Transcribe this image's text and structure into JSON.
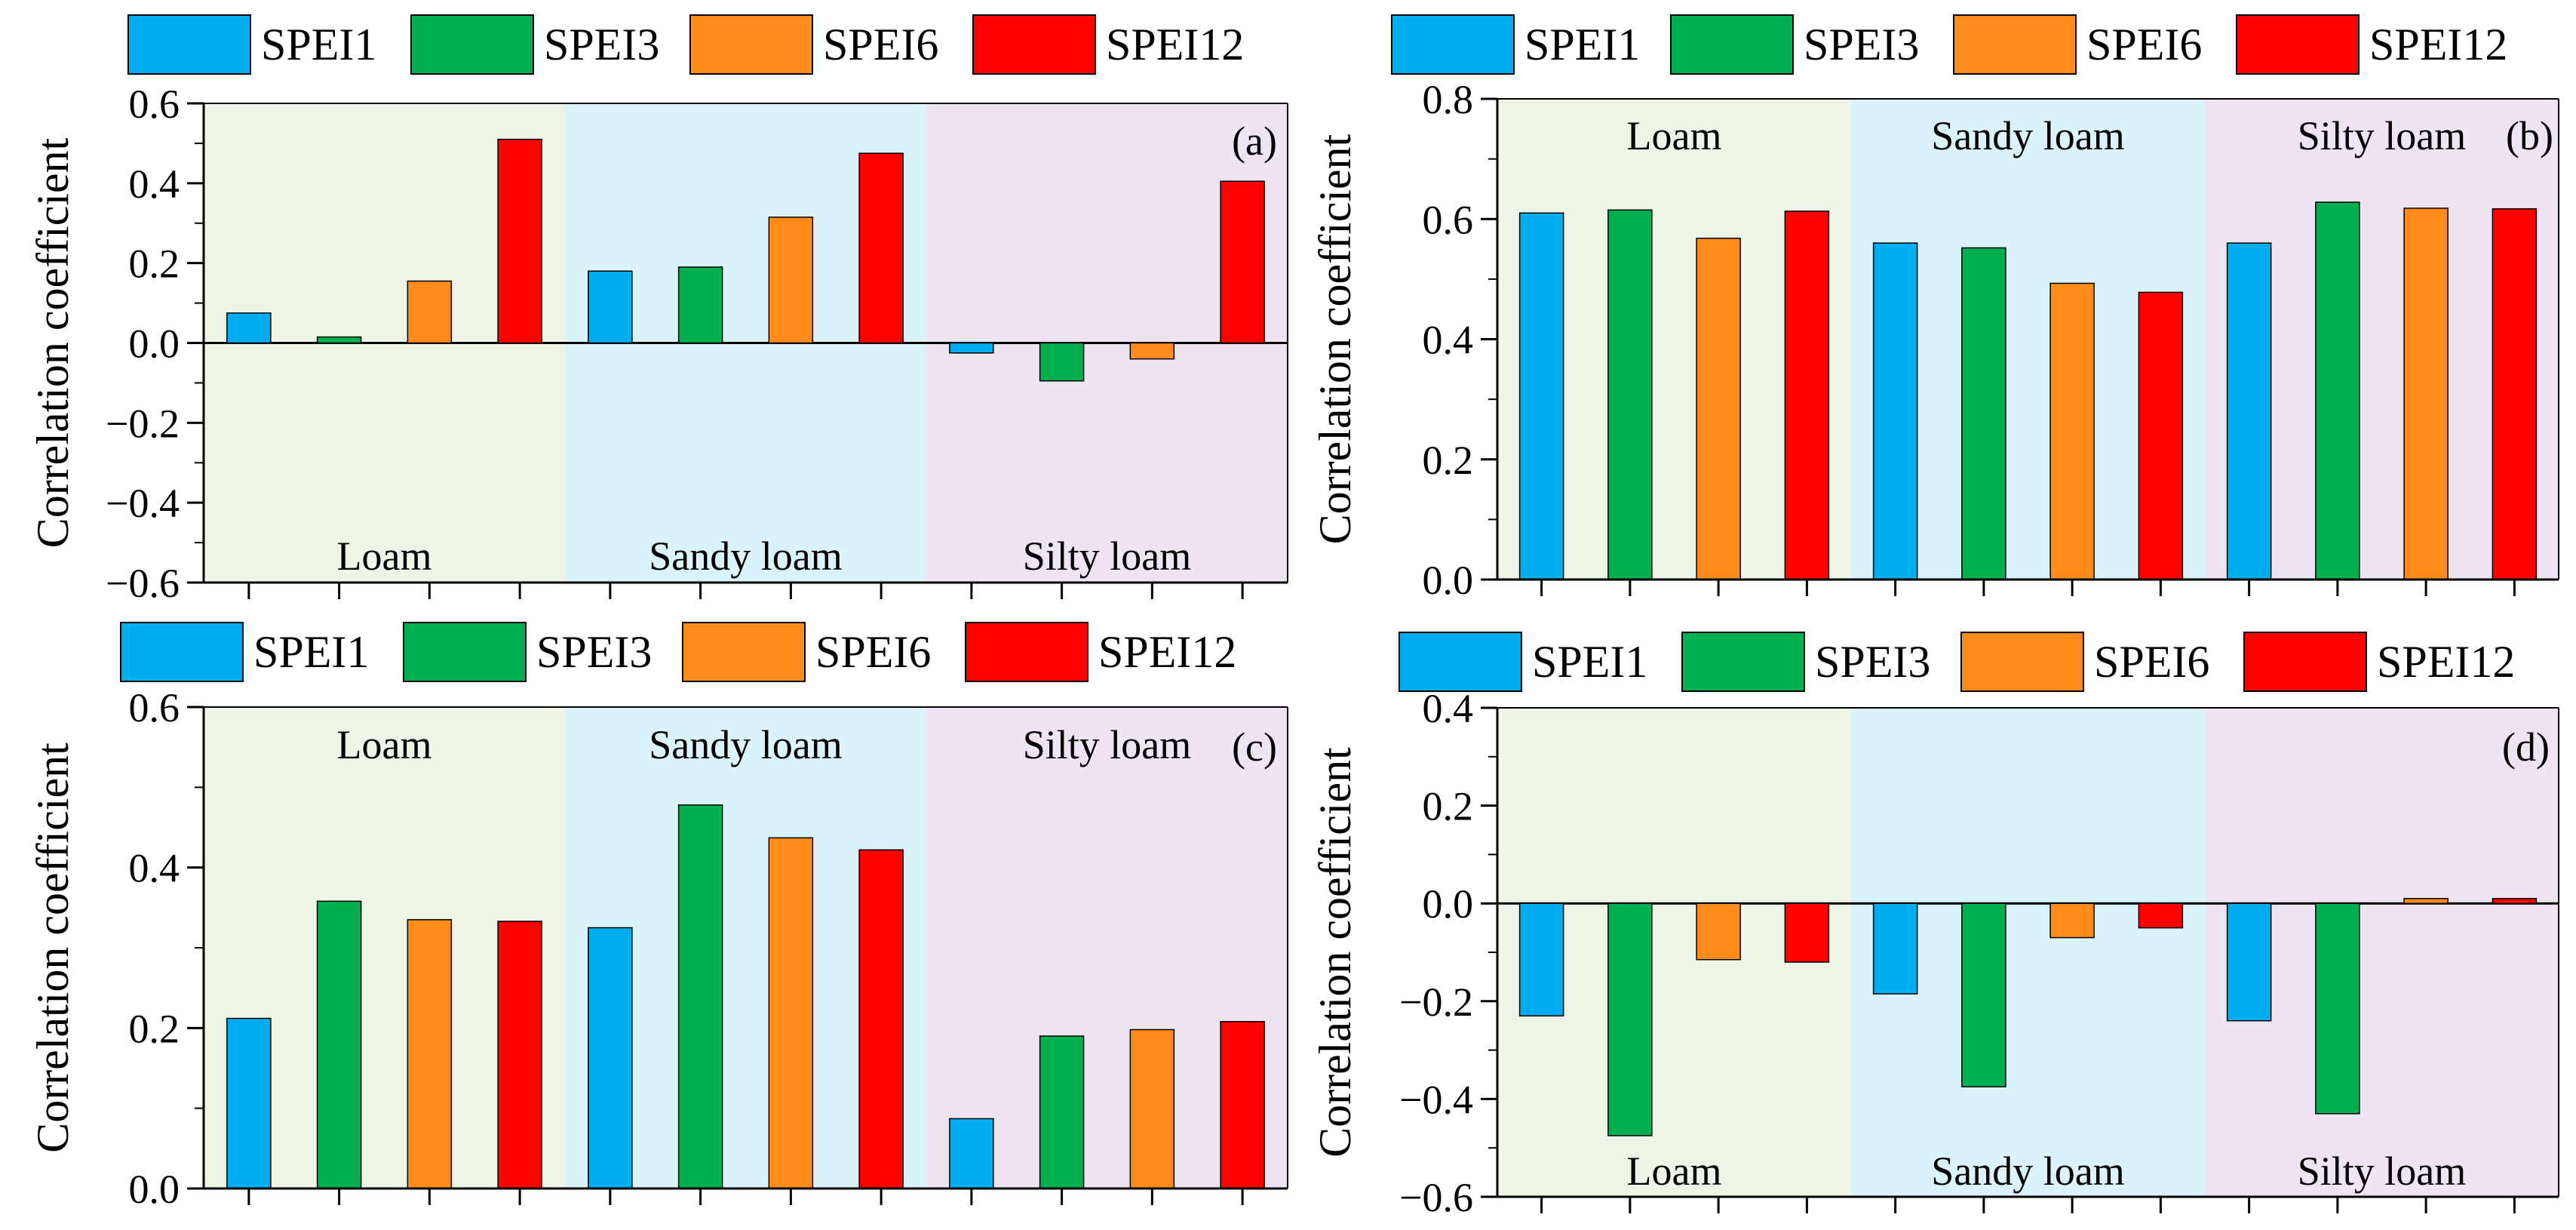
{
  "colors": {
    "SPEI1": "#00AEEF",
    "SPEI3": "#00B050",
    "SPEI6": "#FF8C1A",
    "SPEI12": "#FF0000",
    "bg_loam": "#EEF5E6",
    "bg_sandy": "#DBF3FB",
    "bg_silty": "#EFE5F2"
  },
  "chart_data": [
    {
      "panel": "a",
      "type": "bar",
      "panel_label": "(a)",
      "ylabel": "Correlation coefficient",
      "ylim": [
        -0.6,
        0.6
      ],
      "yticks": [
        -0.6,
        -0.4,
        -0.2,
        0.0,
        0.2,
        0.4,
        0.6
      ],
      "yticklabels": [
        "−0.6",
        "−0.4",
        "−0.2",
        "0.0",
        "0.2",
        "0.4",
        "0.6"
      ],
      "legend": [
        "SPEI1",
        "SPEI3",
        "SPEI6",
        "SPEI12"
      ],
      "group_labels": [
        "Loam",
        "Sandy loam",
        "Silty loam"
      ],
      "group_label_position": "bottom",
      "categories": [
        "Loam",
        "Sandy loam",
        "Silty loam"
      ],
      "series": [
        {
          "name": "SPEI1",
          "values": [
            0.075,
            0.18,
            -0.025
          ]
        },
        {
          "name": "SPEI3",
          "values": [
            0.015,
            0.19,
            -0.095
          ]
        },
        {
          "name": "SPEI6",
          "values": [
            0.155,
            0.315,
            -0.04
          ]
        },
        {
          "name": "SPEI12",
          "values": [
            0.51,
            0.475,
            0.405
          ]
        }
      ]
    },
    {
      "panel": "b",
      "type": "bar",
      "panel_label": "(b)",
      "ylabel": "Correlation coefficient",
      "ylim": [
        0.0,
        0.8
      ],
      "yticks": [
        0.0,
        0.2,
        0.4,
        0.6,
        0.8
      ],
      "yticklabels": [
        "0.0",
        "0.2",
        "0.4",
        "0.6",
        "0.8"
      ],
      "legend": [
        "SPEI1",
        "SPEI3",
        "SPEI6",
        "SPEI12"
      ],
      "group_labels": [
        "Loam",
        "Sandy loam",
        "Silty loam"
      ],
      "group_label_position": "top",
      "categories": [
        "Loam",
        "Sandy loam",
        "Silty loam"
      ],
      "series": [
        {
          "name": "SPEI1",
          "values": [
            0.61,
            0.56,
            0.56
          ]
        },
        {
          "name": "SPEI3",
          "values": [
            0.615,
            0.552,
            0.628
          ]
        },
        {
          "name": "SPEI6",
          "values": [
            0.568,
            0.493,
            0.618
          ]
        },
        {
          "name": "SPEI12",
          "values": [
            0.613,
            0.478,
            0.617
          ]
        }
      ]
    },
    {
      "panel": "c",
      "type": "bar",
      "panel_label": "(c)",
      "ylabel": "Correlation coefficient",
      "ylim": [
        0.0,
        0.6
      ],
      "yticks": [
        0.0,
        0.2,
        0.4,
        0.6
      ],
      "yticklabels": [
        "0.0",
        "0.2",
        "0.4",
        "0.6"
      ],
      "legend": [
        "SPEI1",
        "SPEI3",
        "SPEI6",
        "SPEI12"
      ],
      "group_labels": [
        "Loam",
        "Sandy loam",
        "Silty loam"
      ],
      "group_label_position": "top",
      "categories": [
        "Loam",
        "Sandy loam",
        "Silty loam"
      ],
      "series": [
        {
          "name": "SPEI1",
          "values": [
            0.212,
            0.325,
            0.087
          ]
        },
        {
          "name": "SPEI3",
          "values": [
            0.358,
            0.478,
            0.19
          ]
        },
        {
          "name": "SPEI6",
          "values": [
            0.335,
            0.437,
            0.198
          ]
        },
        {
          "name": "SPEI12",
          "values": [
            0.333,
            0.422,
            0.208
          ]
        }
      ]
    },
    {
      "panel": "d",
      "type": "bar",
      "panel_label": "(d)",
      "ylabel": "Correlation coefficient",
      "ylim": [
        -0.6,
        0.4
      ],
      "yticks": [
        -0.6,
        -0.4,
        -0.2,
        0.0,
        0.2,
        0.4
      ],
      "yticklabels": [
        "−0.6",
        "−0.4",
        "−0.2",
        "0.0",
        "0.2",
        "0.4"
      ],
      "legend": [
        "SPEI1",
        "SPEI3",
        "SPEI6",
        "SPEI12"
      ],
      "group_labels": [
        "Loam",
        "Sandy loam",
        "Silty loam"
      ],
      "group_label_position": "bottom",
      "categories": [
        "Loam",
        "Sandy loam",
        "Silty loam"
      ],
      "series": [
        {
          "name": "SPEI1",
          "values": [
            -0.23,
            -0.185,
            -0.24
          ]
        },
        {
          "name": "SPEI3",
          "values": [
            -0.475,
            -0.375,
            -0.43
          ]
        },
        {
          "name": "SPEI6",
          "values": [
            -0.115,
            -0.07,
            0.01
          ]
        },
        {
          "name": "SPEI12",
          "values": [
            -0.12,
            -0.05,
            0.01
          ]
        }
      ]
    }
  ]
}
